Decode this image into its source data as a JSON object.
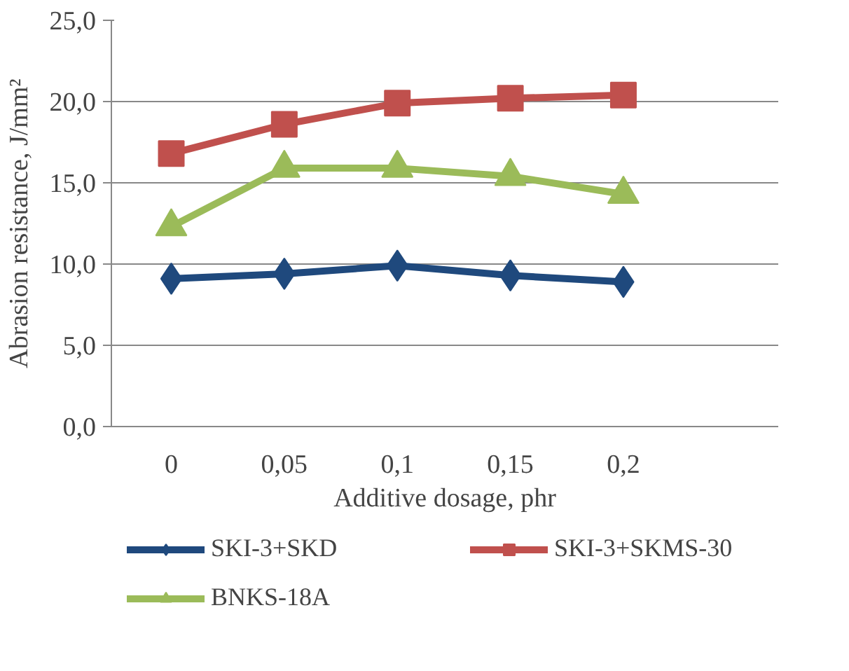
{
  "chart_data": {
    "type": "line",
    "xlabel": "Additive dosage, phr",
    "ylabel": "Abrasion resistance, J/mm²",
    "categories": [
      "0",
      "0,05",
      "0,1",
      "0,15",
      "0,2"
    ],
    "series": [
      {
        "name": "SKI-3+SKD",
        "color": "#1f497d",
        "marker": "diamond",
        "values": [
          9.1,
          9.4,
          9.9,
          9.3,
          8.9
        ]
      },
      {
        "name": "SKI-3+SKMS-30",
        "color": "#c0504d",
        "marker": "square",
        "values": [
          16.8,
          18.6,
          19.9,
          20.2,
          20.4
        ]
      },
      {
        "name": "BNKS-18A",
        "color": "#9bbb59",
        "marker": "triangle",
        "values": [
          12.3,
          15.9,
          15.9,
          15.4,
          14.3
        ]
      }
    ],
    "ylim": [
      0,
      25
    ],
    "yticks": [
      {
        "value": 0,
        "label": "0,0"
      },
      {
        "value": 5,
        "label": "5,0"
      },
      {
        "value": 10,
        "label": "10,0"
      },
      {
        "value": 15,
        "label": "15,0"
      },
      {
        "value": 20,
        "label": "20,0"
      },
      {
        "value": 25,
        "label": "25,0"
      }
    ],
    "grid": "y",
    "legend": "bottom"
  }
}
